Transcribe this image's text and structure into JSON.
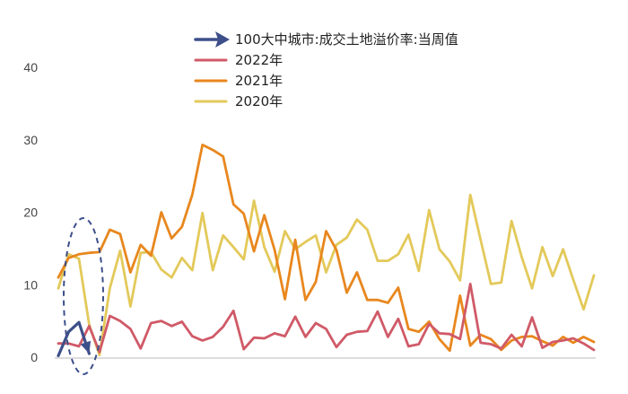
{
  "chart_data": {
    "type": "line",
    "title": "",
    "xlabel": "",
    "ylabel": "",
    "ylim": [
      0,
      40
    ],
    "yticks": [
      0,
      10,
      20,
      30,
      40
    ],
    "grid": false,
    "legend_position": "top",
    "series": [
      {
        "name": "100大中城市:成交土地溢价率:当周值",
        "color": "#3d4f8a",
        "values": [
          0.2,
          3.5,
          4.8,
          0.5
        ]
      },
      {
        "name": "2022年",
        "color": "#d05a68",
        "values": [
          1.9,
          1.9,
          1.5,
          4.3,
          0.7,
          5.7,
          5.0,
          3.9,
          1.2,
          4.7,
          5.0,
          4.3,
          4.9,
          2.9,
          2.3,
          2.8,
          4.2,
          6.4,
          1.1,
          2.7,
          2.6,
          3.3,
          2.9,
          5.6,
          2.8,
          4.7,
          3.9,
          1.4,
          3.1,
          3.5,
          3.6,
          6.3,
          2.8,
          5.3,
          1.5,
          1.8,
          4.6,
          3.3,
          3.2,
          2.5,
          10.1,
          2.0,
          1.8,
          1.2,
          3.1,
          1.5,
          5.5,
          1.3,
          2.1,
          2.3,
          2.6,
          1.9,
          1.0
        ]
      },
      {
        "name": "2021年",
        "color": "#e8871e",
        "values": [
          11.0,
          13.7,
          14.2,
          14.4,
          14.5,
          17.6,
          17.0,
          11.7,
          15.5,
          14.0,
          20.0,
          16.4,
          18.0,
          22.4,
          29.3,
          28.6,
          27.7,
          21.1,
          19.8,
          14.6,
          19.6,
          14.8,
          8.0,
          16.2,
          7.9,
          10.4,
          17.4,
          14.8,
          8.9,
          11.7,
          7.9,
          7.9,
          7.5,
          9.6,
          3.9,
          3.5,
          4.9,
          2.5,
          0.9,
          8.5,
          1.6,
          3.1,
          2.5,
          1.0,
          2.3,
          2.8,
          2.9,
          2.2,
          1.6,
          2.8,
          2.0,
          2.8,
          2.1
        ]
      },
      {
        "name": "2020年",
        "color": "#e3c95a",
        "values": [
          9.5,
          14.2,
          13.6,
          4.5,
          0.3,
          9.5,
          14.7,
          7.0,
          14.4,
          14.5,
          12.1,
          11.0,
          13.7,
          12.0,
          19.9,
          12.0,
          16.8,
          15.2,
          13.5,
          21.6,
          15.2,
          11.8,
          17.4,
          14.9,
          15.9,
          16.8,
          11.7,
          15.5,
          16.5,
          19.0,
          17.6,
          13.3,
          13.3,
          14.2,
          16.9,
          11.9,
          20.3,
          14.9,
          13.2,
          10.6,
          22.4,
          16.2,
          10.1,
          10.3,
          18.8,
          13.8,
          9.5,
          15.2,
          11.2,
          14.9,
          10.7,
          6.6,
          11.3
        ]
      }
    ]
  },
  "annotations": {
    "arrow_color": "#3d4f8a",
    "ellipse_color": "#3d4f8a"
  }
}
